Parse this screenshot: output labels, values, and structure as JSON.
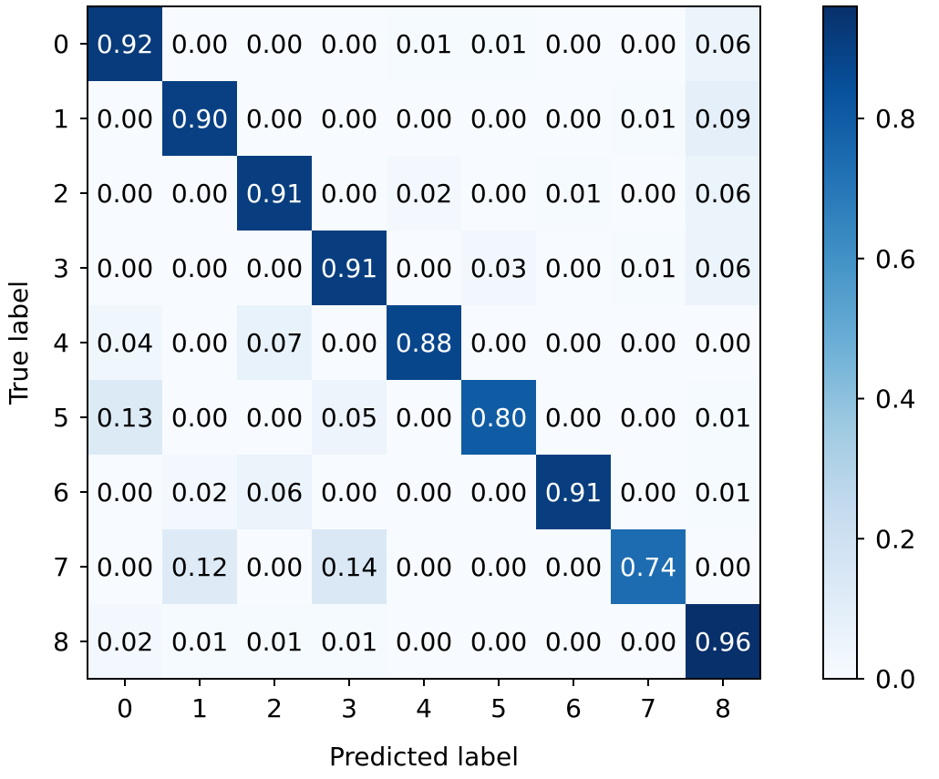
{
  "chart_data": {
    "type": "heatmap",
    "xlabel": "Predicted label",
    "ylabel": "True label",
    "x_categories": [
      "0",
      "1",
      "2",
      "3",
      "4",
      "5",
      "6",
      "7",
      "8"
    ],
    "y_categories": [
      "0",
      "1",
      "2",
      "3",
      "4",
      "5",
      "6",
      "7",
      "8"
    ],
    "matrix": [
      [
        0.92,
        0.0,
        0.0,
        0.0,
        0.01,
        0.01,
        0.0,
        0.0,
        0.06
      ],
      [
        0.0,
        0.9,
        0.0,
        0.0,
        0.0,
        0.0,
        0.0,
        0.01,
        0.09
      ],
      [
        0.0,
        0.0,
        0.91,
        0.0,
        0.02,
        0.0,
        0.01,
        0.0,
        0.06
      ],
      [
        0.0,
        0.0,
        0.0,
        0.91,
        0.0,
        0.03,
        0.0,
        0.01,
        0.06
      ],
      [
        0.04,
        0.0,
        0.07,
        0.0,
        0.88,
        0.0,
        0.0,
        0.0,
        0.0
      ],
      [
        0.13,
        0.0,
        0.0,
        0.05,
        0.0,
        0.8,
        0.0,
        0.0,
        0.01
      ],
      [
        0.0,
        0.02,
        0.06,
        0.0,
        0.0,
        0.0,
        0.91,
        0.0,
        0.01
      ],
      [
        0.0,
        0.12,
        0.0,
        0.14,
        0.0,
        0.0,
        0.0,
        0.74,
        0.0
      ],
      [
        0.02,
        0.01,
        0.01,
        0.01,
        0.0,
        0.0,
        0.0,
        0.0,
        0.96
      ]
    ],
    "value_range": [
      0.0,
      0.96
    ],
    "colormap": "Blues",
    "colorbar": {
      "ticks": [
        0.0,
        0.2,
        0.4,
        0.6,
        0.8
      ],
      "tick_labels": [
        "0.0",
        "0.2",
        "0.4",
        "0.6",
        "0.8"
      ]
    },
    "grid": false
  }
}
